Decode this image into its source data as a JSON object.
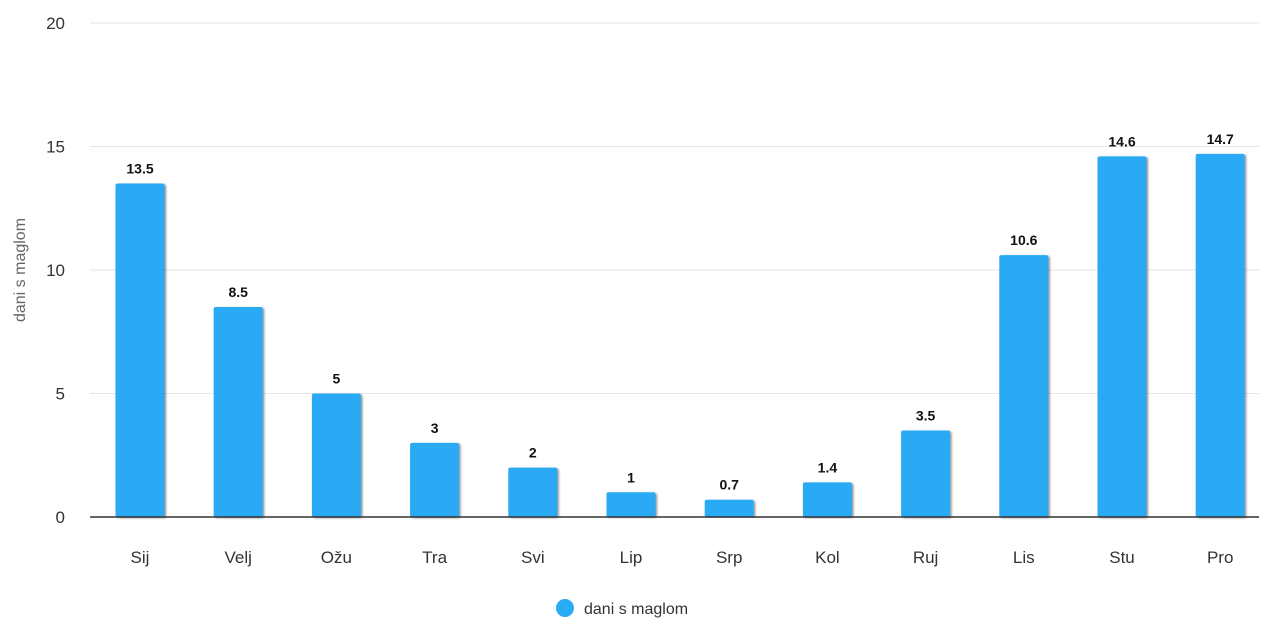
{
  "chart_data": {
    "type": "bar",
    "categories": [
      "Sij",
      "Velj",
      "Ožu",
      "Tra",
      "Svi",
      "Lip",
      "Srp",
      "Kol",
      "Ruj",
      "Lis",
      "Stu",
      "Pro"
    ],
    "series": [
      {
        "name": "dani s maglom",
        "values": [
          13.5,
          8.5,
          5,
          3,
          2,
          1,
          0.7,
          1.4,
          3.5,
          10.6,
          14.6,
          14.7
        ],
        "color": "#29aaf4"
      }
    ],
    "xlabel": "",
    "ylabel": "dani s maglom",
    "ylim": [
      0,
      20
    ],
    "yticks": [
      0,
      5,
      10,
      15,
      20
    ],
    "grid": true,
    "legend_position": "bottom-center",
    "data_labels": true
  }
}
